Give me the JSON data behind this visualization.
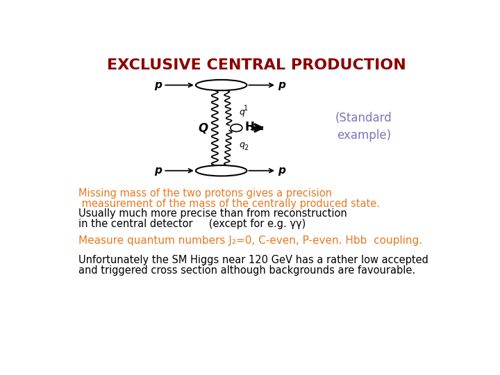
{
  "title": "EXCLUSIVE CENTRAL PRODUCTION",
  "title_color": "#8B0000",
  "title_fontsize": 16,
  "standard_example_text": "(Standard\nexample)",
  "standard_example_color": "#7777BB",
  "standard_example_fontsize": 12,
  "line1_orange": "Missing mass of the two protons gives a precision",
  "line2_orange": " measurement of the mass of the centrally produced state.",
  "line3_black": "Usually much more precise than from reconstruction",
  "line4_black": "in the central detector     (except for e.g. γγ)",
  "line5_orange": "Measure quantum numbers J₂=0, C-even, P-even. Hbb  coupling.",
  "line6_black": "Unfortunately the SM Higgs near 120 GeV has a rather low accepted",
  "line7_black": "and triggered cross section although backgrounds are favourable.",
  "orange_color": "#E87820",
  "black_color": "#000000",
  "text_fontsize": 10.5,
  "measure_fontsize": 11,
  "background_color": "#FFFFFF"
}
